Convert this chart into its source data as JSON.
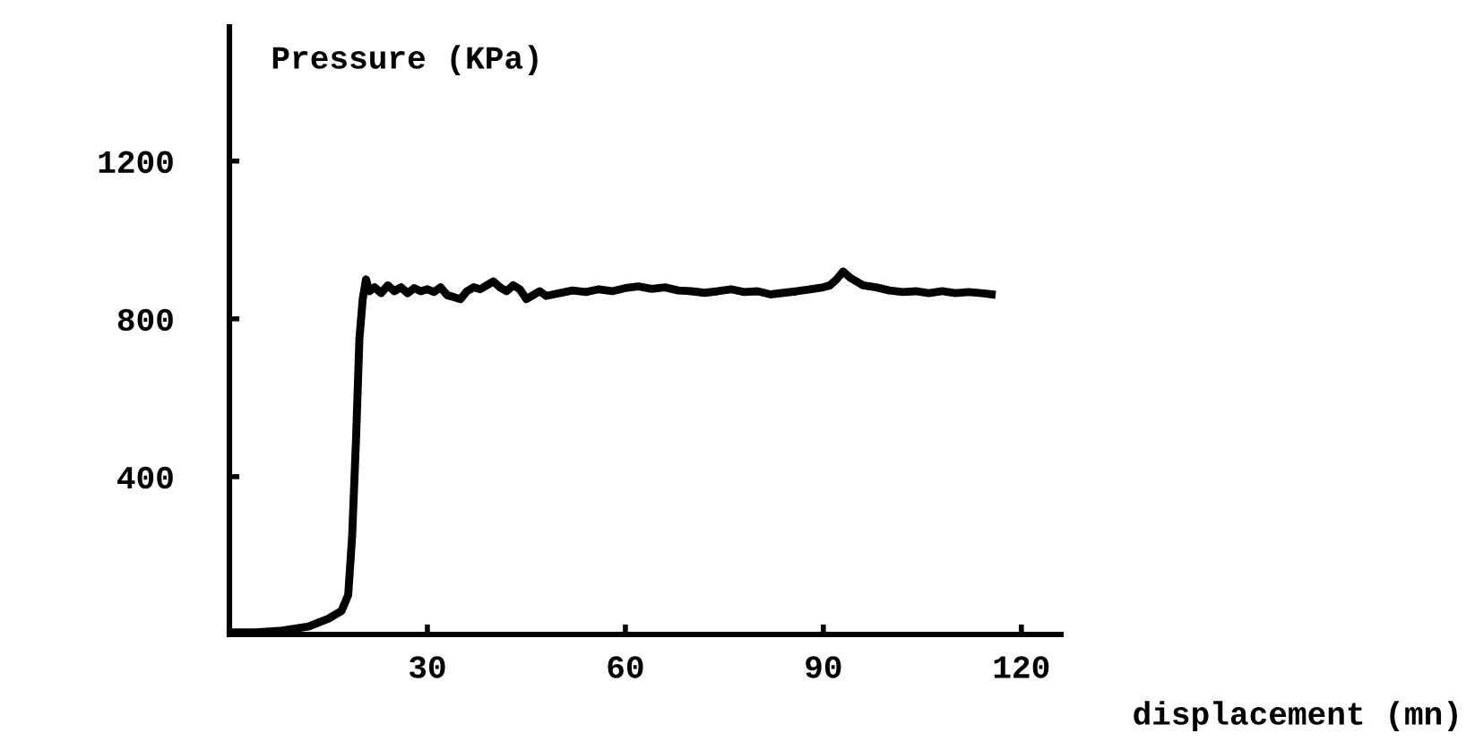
{
  "chart_data": {
    "type": "line",
    "ylabel": "Pressure (KPa)",
    "xlabel": "displacement (mn)",
    "xlim": [
      0,
      126
    ],
    "ylim": [
      0,
      1540
    ],
    "xticks": [
      30,
      60,
      90,
      120
    ],
    "yticks": [
      400,
      800,
      1200
    ],
    "grid": false,
    "marker": "none",
    "line_style": "solid",
    "series": [
      {
        "color": "#000000",
        "x": [
          0.5,
          4,
          8,
          12,
          15,
          17,
          18,
          18.6,
          19.2,
          19.7,
          20.2,
          20.7,
          21.2,
          22,
          23,
          24,
          25,
          26,
          27,
          28,
          29,
          30,
          31,
          32,
          33,
          34,
          35,
          36,
          37,
          38,
          39,
          40,
          41,
          42,
          43,
          44,
          45,
          46,
          47,
          48,
          50,
          52,
          54,
          56,
          58,
          60,
          62,
          64,
          66,
          68,
          70,
          72,
          74,
          76,
          78,
          80,
          82,
          84,
          86,
          88,
          90,
          91,
          92,
          93,
          94,
          95,
          96,
          98,
          100,
          102,
          104,
          106,
          108,
          110,
          112,
          114,
          115.5
        ],
        "values": [
          5,
          5,
          10,
          20,
          40,
          60,
          100,
          250,
          500,
          750,
          850,
          900,
          870,
          880,
          865,
          885,
          870,
          880,
          865,
          878,
          870,
          875,
          868,
          880,
          860,
          855,
          850,
          870,
          880,
          875,
          885,
          895,
          880,
          870,
          885,
          875,
          850,
          860,
          870,
          858,
          865,
          872,
          868,
          875,
          870,
          878,
          882,
          876,
          880,
          872,
          870,
          866,
          870,
          875,
          868,
          870,
          862,
          866,
          870,
          875,
          880,
          885,
          900,
          920,
          905,
          895,
          885,
          880,
          872,
          868,
          870,
          865,
          870,
          865,
          868,
          865,
          862
        ]
      }
    ]
  }
}
